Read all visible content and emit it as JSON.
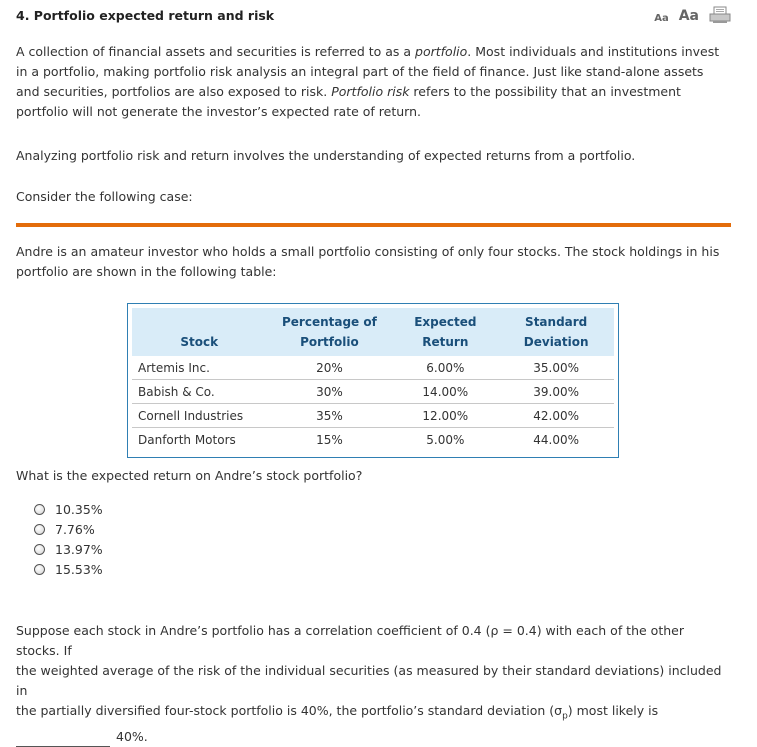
{
  "header": {
    "title": "4. Portfolio expected return and risk",
    "font_small": "Aa",
    "font_large": "Aa",
    "print_icon": "printer-icon"
  },
  "intro": {
    "p1_before": "A collection of financial assets and securities is referred to as a ",
    "p1_em1": "portfolio",
    "p1_mid": ". Most individuals and institutions invest in a portfolio, making portfolio risk analysis an integral part of the field of finance. Just like stand-alone assets and securities, portfolios are also exposed to risk. ",
    "p1_em2": "Portfolio risk",
    "p1_after": " refers to the possibility that an investment portfolio will not generate the investor’s expected rate of return.",
    "p2": "Analyzing portfolio risk and return involves the understanding of expected returns from a portfolio.",
    "p3": "Consider the following case:"
  },
  "accent_color": "#e36c0a",
  "case": {
    "text": "Andre is an amateur investor who holds a small portfolio consisting of only four stocks. The stock holdings in his portfolio are shown in the following table:"
  },
  "table": {
    "headers": {
      "stock": "Stock",
      "pct_line1": "Percentage of",
      "pct_line2": "Portfolio",
      "ret_line1": "Expected",
      "ret_line2": "Return",
      "sd_line1": "Standard",
      "sd_line2": "Deviation"
    },
    "rows": [
      {
        "stock": "Artemis Inc.",
        "pct": "20%",
        "ret": "6.00%",
        "sd": "35.00%"
      },
      {
        "stock": "Babish & Co.",
        "pct": "30%",
        "ret": "14.00%",
        "sd": "39.00%"
      },
      {
        "stock": "Cornell Industries",
        "pct": "35%",
        "ret": "12.00%",
        "sd": "42.00%"
      },
      {
        "stock": "Danforth Motors",
        "pct": "15%",
        "ret": "5.00%",
        "sd": "44.00%"
      }
    ]
  },
  "question": {
    "text": "What is the expected return on Andre’s stock portfolio?",
    "options": [
      "10.35%",
      "7.76%",
      "13.97%",
      "15.53%"
    ]
  },
  "followup": {
    "line1": "Suppose each stock in Andre’s portfolio has a correlation coefficient of 0.4 (ρ = 0.4) with each of the other stocks. If",
    "line2": "the weighted average of the risk of the individual securities (as measured by their standard deviations) included in",
    "line3_before": "the partially diversified  four-stock portfolio is 40%, the portfolio’s standard deviation (σ",
    "line3_sub": "p",
    "line3_after": ") most likely is",
    "line4": "40%."
  }
}
